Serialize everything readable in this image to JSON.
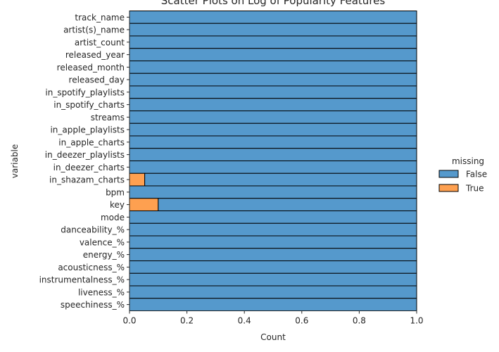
{
  "chart_data": {
    "type": "bar",
    "orientation": "horizontal",
    "stacked": true,
    "title": "Scatter Plots on Log of Popularity Features",
    "xlabel": "Count",
    "ylabel": "variable",
    "xlim": [
      0,
      1
    ],
    "xticks": [
      "0.0",
      "0.2",
      "0.4",
      "0.6",
      "0.8",
      "1.0"
    ],
    "grid": false,
    "legend": {
      "title": "missing",
      "position": "right",
      "entries": [
        {
          "label": "False",
          "color": "#5599cc"
        },
        {
          "label": "True",
          "color": "#fea050"
        }
      ]
    },
    "categories": [
      "track_name",
      "artist(s)_name",
      "artist_count",
      "released_year",
      "released_month",
      "released_day",
      "in_spotify_playlists",
      "in_spotify_charts",
      "streams",
      "in_apple_playlists",
      "in_apple_charts",
      "in_deezer_playlists",
      "in_deezer_charts",
      "in_shazam_charts",
      "bpm",
      "key",
      "mode",
      "danceability_%",
      "valence_%",
      "energy_%",
      "acousticness_%",
      "instrumentalness_%",
      "liveness_%",
      "speechiness_%"
    ],
    "series": [
      {
        "name": "True",
        "color": "#fea050",
        "values": [
          0,
          0,
          0,
          0,
          0,
          0,
          0,
          0,
          0,
          0,
          0,
          0,
          0,
          0.053,
          0,
          0.1,
          0,
          0,
          0,
          0,
          0,
          0,
          0,
          0
        ]
      },
      {
        "name": "False",
        "color": "#5599cc",
        "values": [
          1,
          1,
          1,
          1,
          1,
          1,
          1,
          1,
          1,
          1,
          1,
          1,
          1,
          0.947,
          1,
          0.9,
          1,
          1,
          1,
          1,
          1,
          1,
          1,
          1
        ]
      }
    ]
  }
}
